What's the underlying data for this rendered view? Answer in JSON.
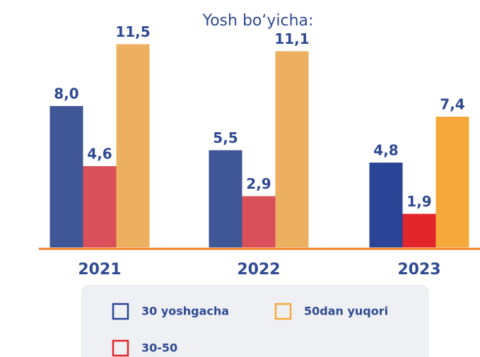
{
  "chart_data": {
    "type": "bar",
    "title": "Yosh bo‘yicha:",
    "categories": [
      "2021",
      "2022",
      "2023"
    ],
    "series": [
      {
        "name": "30 yoshgacha",
        "color": "#2b4596",
        "colors": [
          "#3f5796",
          "#3f5796",
          "#2b4596"
        ],
        "values": [
          8.0,
          5.5,
          4.8
        ],
        "value_labels": [
          "8,0",
          "5,5",
          "4,8"
        ]
      },
      {
        "name": "30-50",
        "color": "#e2262b",
        "colors": [
          "#d9505a",
          "#d9505a",
          "#e2262b"
        ],
        "values": [
          4.6,
          2.9,
          1.9
        ],
        "value_labels": [
          "4,6",
          "2,9",
          "1,9"
        ]
      },
      {
        "name": "50dan yuqori",
        "color": "#f5a93a",
        "colors": [
          "#ecb060",
          "#ecb060",
          "#f5a93a"
        ],
        "values": [
          11.5,
          11.1,
          7.4
        ],
        "value_labels": [
          "11,5",
          "11,1",
          "7,4"
        ]
      }
    ]
  }
}
